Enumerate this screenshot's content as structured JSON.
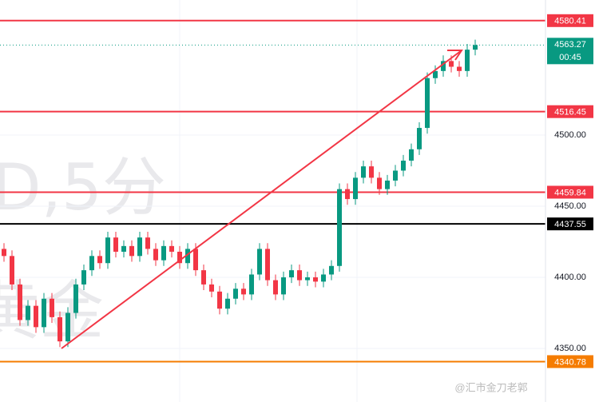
{
  "chart_data": {
    "type": "candlestick",
    "watermark_symbol": "D,5分",
    "watermark_name": "黄金",
    "credit": "@汇市金刀老郭",
    "ylim": [
      4312.4,
      4594.9
    ],
    "yticks": [
      {
        "value": 4350,
        "label": "4350.00"
      },
      {
        "value": 4400,
        "label": "4400.00"
      },
      {
        "value": 4450,
        "label": "4450.00"
      },
      {
        "value": 4500,
        "label": "4500.00"
      }
    ],
    "up_color": "#089981",
    "down_color": "#f23645",
    "open": [
      4420,
      4415,
      4395,
      4370,
      4380,
      4365,
      4385,
      4372,
      4355,
      4375,
      4395,
      4405,
      4415,
      4410,
      4428,
      4418,
      4422,
      4415,
      4428,
      4420,
      4412,
      4422,
      4418,
      4410,
      4420,
      4405,
      4395,
      4390,
      4378,
      4385,
      4392,
      4388,
      4402,
      4420,
      4398,
      4388,
      4400,
      4405,
      4398,
      4400,
      4397,
      4402,
      4408,
      4462,
      4455,
      4470,
      4478,
      4470,
      4462,
      4468,
      4475,
      4482,
      4490,
      4505,
      4540,
      4545,
      4552,
      4548,
      4545,
      4560
    ],
    "high": [
      4424,
      4419,
      4399,
      4384,
      4384,
      4389,
      4389,
      4376,
      4379,
      4399,
      4409,
      4419,
      4419,
      4432,
      4432,
      4426,
      4426,
      4432,
      4432,
      4424,
      4426,
      4426,
      4422,
      4424,
      4424,
      4409,
      4399,
      4394,
      4389,
      4396,
      4396,
      4406,
      4424,
      4424,
      4402,
      4404,
      4409,
      4409,
      4404,
      4404,
      4406,
      4412,
      4466,
      4466,
      4474,
      4482,
      4482,
      4474,
      4472,
      4479,
      4486,
      4494,
      4509,
      4544,
      4549,
      4556,
      4556,
      4552,
      4564,
      4567
    ],
    "low": [
      4411,
      4391,
      4366,
      4366,
      4361,
      4361,
      4368,
      4351,
      4351,
      4371,
      4391,
      4401,
      4406,
      4406,
      4414,
      4414,
      4411,
      4411,
      4416,
      4408,
      4408,
      4414,
      4406,
      4406,
      4401,
      4391,
      4386,
      4374,
      4374,
      4381,
      4384,
      4384,
      4398,
      4394,
      4384,
      4384,
      4396,
      4394,
      4394,
      4393,
      4393,
      4398,
      4404,
      4451,
      4451,
      4466,
      4466,
      4458,
      4458,
      4464,
      4471,
      4478,
      4486,
      4501,
      4536,
      4541,
      4544,
      4541,
      4541,
      4556
    ],
    "close": [
      4415,
      4395,
      4370,
      4380,
      4365,
      4385,
      4372,
      4355,
      4375,
      4395,
      4405,
      4415,
      4410,
      4428,
      4418,
      4422,
      4415,
      4428,
      4420,
      4412,
      4422,
      4418,
      4410,
      4420,
      4405,
      4395,
      4390,
      4378,
      4385,
      4392,
      4388,
      4402,
      4420,
      4398,
      4388,
      4400,
      4405,
      4398,
      4400,
      4397,
      4402,
      4408,
      4462,
      4455,
      4470,
      4478,
      4470,
      4462,
      4468,
      4475,
      4482,
      4490,
      4505,
      4540,
      4545,
      4552,
      4548,
      4545,
      4560,
      4563.27
    ],
    "levels": [
      {
        "value": 4580.41,
        "color": "#f23645"
      },
      {
        "value": 4516.45,
        "color": "#f23645"
      },
      {
        "value": 4459.84,
        "color": "#f23645"
      },
      {
        "value": 4437.55,
        "color": "#000000"
      },
      {
        "value": 4340.78,
        "color": "#f57c00"
      }
    ],
    "last_price": 4563.27,
    "countdown": "00:45"
  }
}
